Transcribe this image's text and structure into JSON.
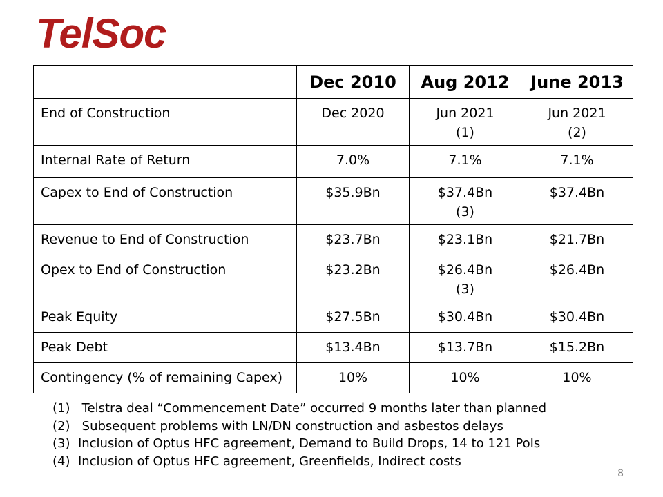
{
  "logo": {
    "text": "TelSoc",
    "color": "#B01C1C"
  },
  "table": {
    "headers": [
      "",
      "Dec 2010",
      "Aug 2012",
      "June 2013"
    ],
    "rows": [
      {
        "label": "End of Construction",
        "values": [
          "Dec 2020",
          "Jun 2021",
          "Jun 2021"
        ],
        "notes": [
          "",
          "(1)",
          "(2)"
        ]
      },
      {
        "label": "Internal Rate of Return",
        "values": [
          "7.0%",
          "7.1%",
          "7.1%"
        ],
        "notes": [
          "",
          "",
          ""
        ]
      },
      {
        "label": "Capex to End of Construction",
        "values": [
          "$35.9Bn",
          "$37.4Bn",
          "$37.4Bn"
        ],
        "notes": [
          "",
          "(3)",
          ""
        ]
      },
      {
        "label": "Revenue to End of Construction",
        "values": [
          "$23.7Bn",
          "$23.1Bn",
          "$21.7Bn"
        ],
        "notes": [
          "",
          "",
          ""
        ]
      },
      {
        "label": "Opex to End of Construction",
        "values": [
          "$23.2Bn",
          "$26.4Bn",
          "$26.4Bn"
        ],
        "notes": [
          "",
          "(3)",
          ""
        ]
      },
      {
        "label": "Peak Equity",
        "values": [
          "$27.5Bn",
          "$30.4Bn",
          "$30.4Bn"
        ],
        "notes": [
          "",
          "",
          ""
        ]
      },
      {
        "label": "Peak Debt",
        "values": [
          "$13.4Bn",
          "$13.7Bn",
          "$15.2Bn"
        ],
        "notes": [
          "",
          "",
          ""
        ]
      },
      {
        "label": "Contingency (% of remaining Capex)",
        "values": [
          "10%",
          "10%",
          "10%"
        ],
        "notes": [
          "",
          "",
          ""
        ]
      }
    ]
  },
  "footnotes": [
    "(1)   Telstra deal “Commencement Date” occurred 9 months later than planned",
    "(2)   Subsequent problems with LN/DN construction and asbestos delays",
    "(3)  Inclusion of Optus HFC agreement, Demand to Build Drops, 14 to 121 PoIs",
    "(4)  Inclusion of Optus HFC agreement, Greenfields, Indirect costs"
  ],
  "page_number": "8"
}
